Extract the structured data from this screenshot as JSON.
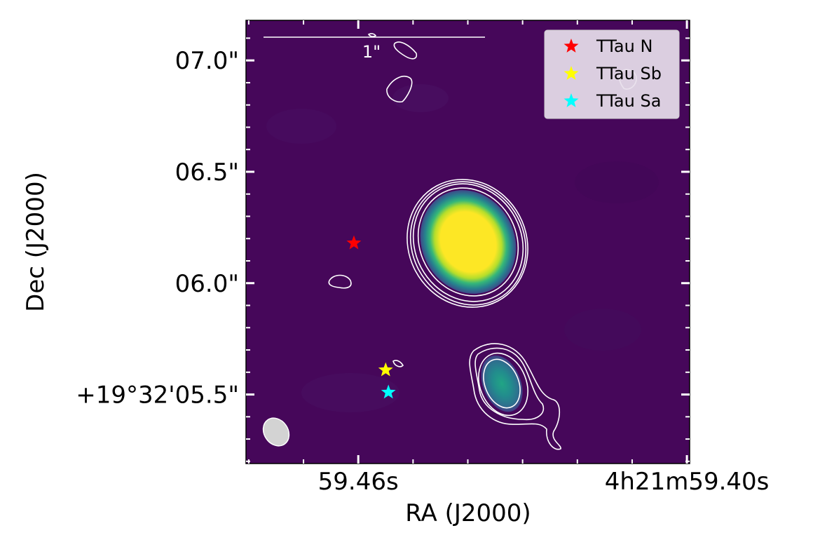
{
  "chart_data": {
    "type": "image",
    "title": "",
    "xlabel": "RA (J2000)",
    "ylabel": "Dec (J2000)",
    "x_ticks": [
      {
        "value": 59.46,
        "label": "59.46s"
      },
      {
        "value": 59.4,
        "label": "4h21m59.40s"
      }
    ],
    "y_ticks": [
      {
        "value": 5.5,
        "label": "+19°32'05.5\""
      },
      {
        "value": 6.0,
        "label": "06.0\""
      },
      {
        "value": 6.5,
        "label": "06.5\""
      },
      {
        "value": 7.0,
        "label": "07.0\""
      }
    ],
    "xlim": [
      59.4805,
      59.3995
    ],
    "ylim": [
      5.19,
      7.18
    ],
    "scale_bar": {
      "label": "1\""
    },
    "legend": {
      "position": "top-right",
      "entries": [
        {
          "label": "TTau N",
          "color": "#ff0000"
        },
        {
          "label": "TTau Sb",
          "color": "#ffff00"
        },
        {
          "label": "TTau Sa",
          "color": "#00ffff"
        }
      ]
    },
    "sources": [
      {
        "name": "TTau N",
        "ra": 59.4608,
        "dec": 6.18,
        "color": "#ff0000",
        "marker": "star-icon"
      },
      {
        "name": "TTau Sb",
        "ra": 59.455,
        "dec": 5.61,
        "color": "#ffff00",
        "marker": "star-icon"
      },
      {
        "name": "TTau Sa",
        "ra": 59.4545,
        "dec": 5.51,
        "color": "#00ffff",
        "marker": "star-icon"
      }
    ],
    "colormap": "viridis",
    "contour_color": "#ffffff"
  }
}
